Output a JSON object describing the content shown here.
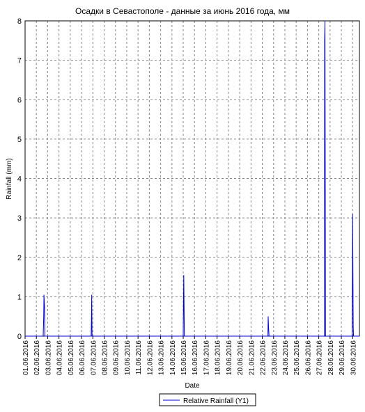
{
  "chart_data": {
    "type": "line",
    "title": "Осадки в Севастополе - данные за июнь 2016 года, мм",
    "x_label": "Date",
    "y_label": "Rainfall (mm)",
    "x": [
      1,
      2.6,
      2.65,
      2.67,
      2.72,
      2.75,
      6.85,
      6.88,
      6.9,
      6.93,
      15.0,
      15.02,
      15.05,
      15.1,
      22.5,
      22.52,
      22.55,
      22.6,
      27.5,
      27.52,
      27.55,
      27.6,
      29.95,
      29.98,
      30.0,
      30.05,
      30.08,
      30.6
    ],
    "series": [
      {
        "name": "Relative Rainfall (Y1)",
        "color": "#0000cc",
        "values": [
          0,
          0,
          0.5,
          1.05,
          0.75,
          0,
          0,
          0.5,
          1.05,
          0,
          0,
          0.75,
          1.55,
          0,
          0,
          0.5,
          0.25,
          0,
          0,
          7.5,
          8,
          0,
          0,
          1.55,
          3.1,
          0.25,
          0,
          0
        ]
      }
    ],
    "xlim": [
      1,
      30.6
    ],
    "xticks": [
      {
        "value": 1,
        "label": "01.06.2016"
      },
      {
        "value": 2,
        "label": "02.06.2016"
      },
      {
        "value": 3,
        "label": "03.06.2016"
      },
      {
        "value": 4,
        "label": "04.06.2016"
      },
      {
        "value": 5,
        "label": "05.06.2016"
      },
      {
        "value": 6,
        "label": "06.06.2016"
      },
      {
        "value": 7,
        "label": "07.06.2016"
      },
      {
        "value": 8,
        "label": "08.06.2016"
      },
      {
        "value": 9,
        "label": "09.06.2016"
      },
      {
        "value": 10,
        "label": "10.06.2016"
      },
      {
        "value": 11,
        "label": "11.06.2016"
      },
      {
        "value": 12,
        "label": "12.06.2016"
      },
      {
        "value": 13,
        "label": "13.06.2016"
      },
      {
        "value": 14,
        "label": "14.06.2016"
      },
      {
        "value": 15,
        "label": "15.06.2016"
      },
      {
        "value": 16,
        "label": "16.06.2016"
      },
      {
        "value": 17,
        "label": "17.06.2016"
      },
      {
        "value": 18,
        "label": "18.06.2016"
      },
      {
        "value": 19,
        "label": "19.06.2016"
      },
      {
        "value": 20,
        "label": "20.06.2016"
      },
      {
        "value": 21,
        "label": "21.06.2016"
      },
      {
        "value": 22,
        "label": "22.06.2016"
      },
      {
        "value": 23,
        "label": "23.06.2016"
      },
      {
        "value": 24,
        "label": "24.06.2016"
      },
      {
        "value": 25,
        "label": "25.06.2016"
      },
      {
        "value": 26,
        "label": "26.06.2016"
      },
      {
        "value": 27,
        "label": "27.06.2016"
      },
      {
        "value": 28,
        "label": "28.06.2016"
      },
      {
        "value": 29,
        "label": "29.06.2016"
      },
      {
        "value": 30,
        "label": "30.06.2016"
      }
    ],
    "ylim": [
      0,
      8
    ],
    "yticks": [
      0,
      1,
      2,
      3,
      4,
      5,
      6,
      7,
      8
    ],
    "grid": true
  }
}
